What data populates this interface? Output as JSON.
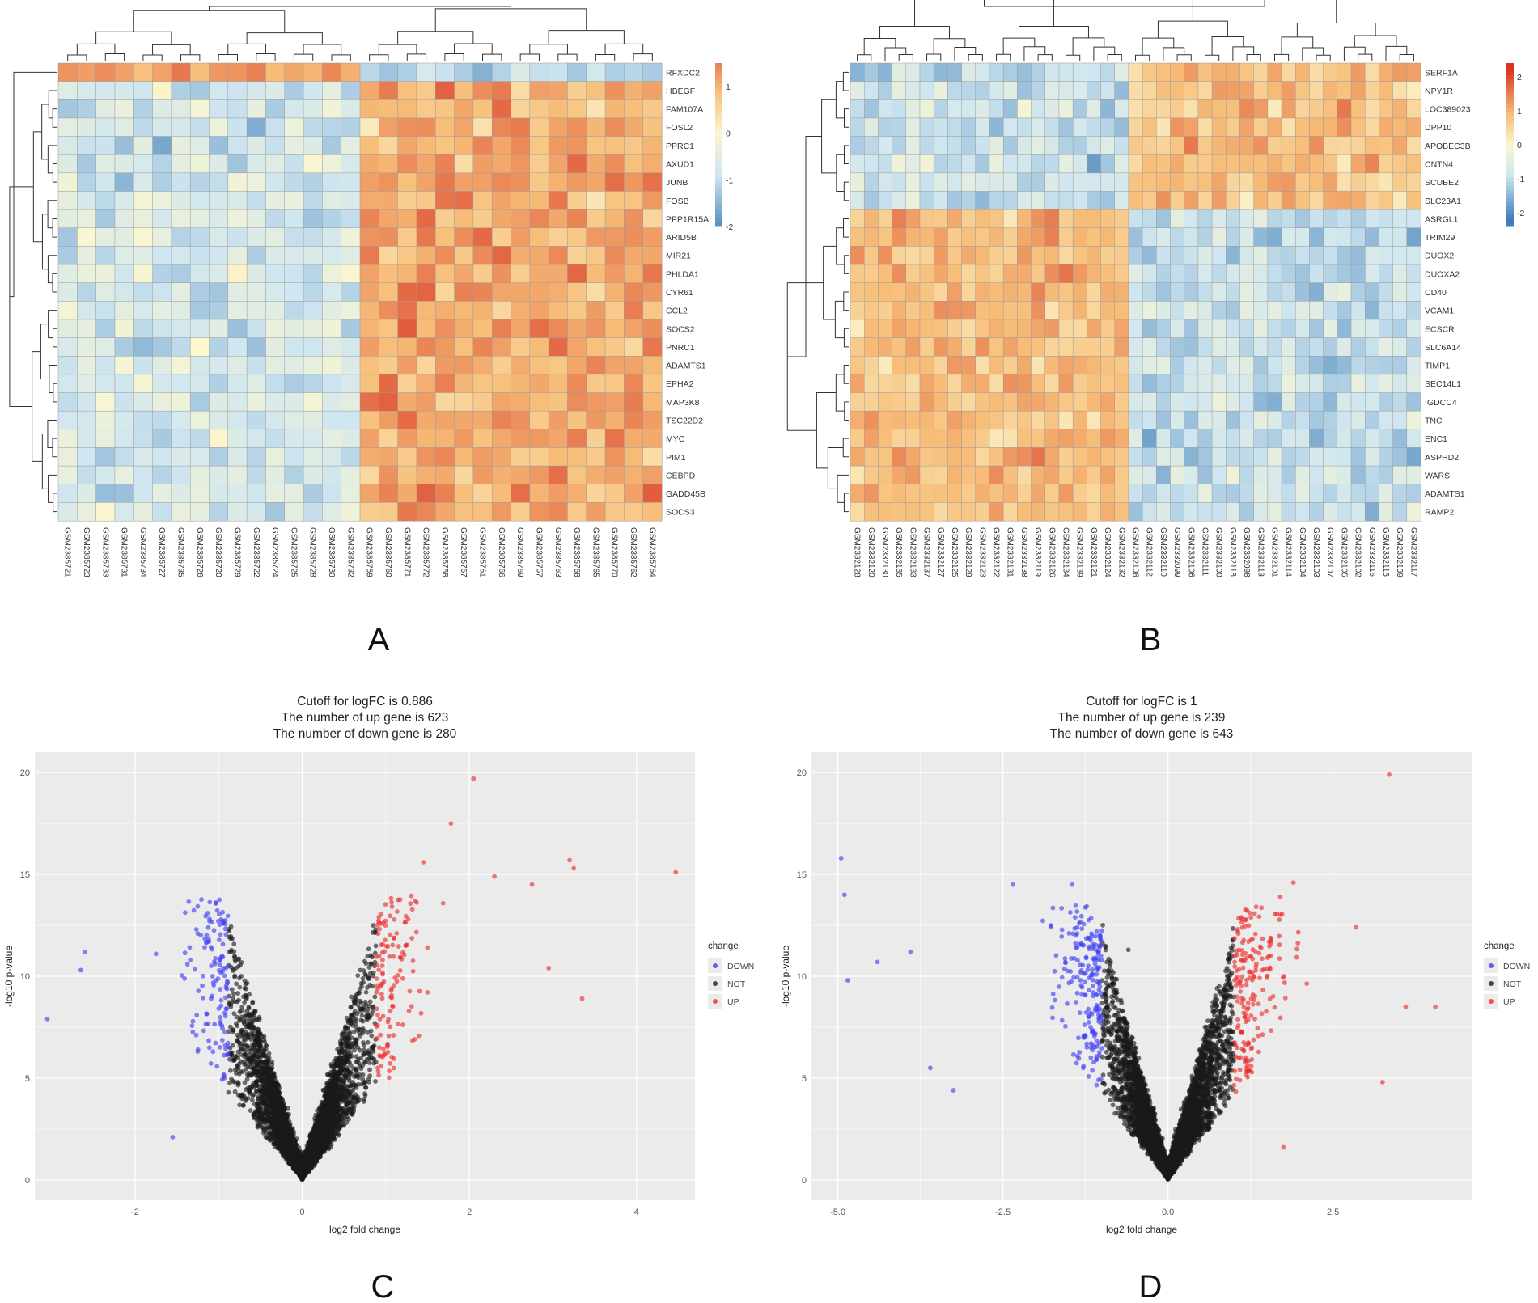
{
  "panel_letters": [
    "A",
    "B",
    "C",
    "D"
  ],
  "colors": {
    "heat_low": "#3f7fb8",
    "heat_lowmid": "#cfe6f0",
    "heat_mid": "#fbf7cf",
    "heat_highmid": "#f7be79",
    "heat_high": "#d83424",
    "down": "#3d3df5",
    "not": "#1a1a1a",
    "up": "#ee2a2a",
    "panel_bg": "#ebebeb",
    "grid": "#ffffff"
  },
  "chart_data": [
    {
      "panel": "A",
      "type": "heatmap",
      "rows": [
        "RFXDC2",
        "HBEGF",
        "FAM107A",
        "FOSL2",
        "PPRC1",
        "AXUD1",
        "JUNB",
        "FOSB",
        "PPP1R15A",
        "ARID5B",
        "MIR21",
        "PHLDA1",
        "CYR61",
        "CCL2",
        "SOCS2",
        "PNRC1",
        "ADAMTS1",
        "EPHA2",
        "MAP3K8",
        "TSC22D2",
        "MYC",
        "PIM1",
        "CEBPD",
        "GADD45B",
        "SOCS3"
      ],
      "columns": [
        "GSM2385721",
        "GSM2385723",
        "GSM2385733",
        "GSM2385731",
        "GSM2385734",
        "GSM2385727",
        "GSM2385735",
        "GSM2385726",
        "GSM2385720",
        "GSM2385729",
        "GSM2385722",
        "GSM2385724",
        "GSM2385725",
        "GSM2385728",
        "GSM2385730",
        "GSM2385732",
        "GSM2385759",
        "GSM2385760",
        "GSM2385771",
        "GSM2385772",
        "GSM2385758",
        "GSM2385767",
        "GSM2385761",
        "GSM2385766",
        "GSM2385769",
        "GSM2385757",
        "GSM2385763",
        "GSM2385768",
        "GSM2385765",
        "GSM2385770",
        "GSM2385762",
        "GSM2385764"
      ],
      "group_split": 16,
      "legend_ticks": [
        "1",
        "0",
        "-1",
        "-2"
      ],
      "legend_range": [
        -2,
        1.5
      ]
    },
    {
      "panel": "B",
      "type": "heatmap",
      "rows": [
        "SERF1A",
        "NPY1R",
        "LOC389023",
        "DPP10",
        "APOBEC3B",
        "CNTN4",
        "SCUBE2",
        "SLC23A1",
        "ASRGL1",
        "TRIM29",
        "DUOX2",
        "DUOXA2",
        "CD40",
        "VCAM1",
        "ECSCR",
        "SLC6A14",
        "TIMP1",
        "SEC14L1",
        "IGDCC4",
        "TNC",
        "ENC1",
        "ASPHD2",
        "WARS",
        "ADAMTS1",
        "RAMP2"
      ],
      "columns": [
        "GSM2332128",
        "GSM2332120",
        "GSM2332130",
        "GSM2332135",
        "GSM2332133",
        "GSM2332137",
        "GSM2332127",
        "GSM2332125",
        "GSM2332129",
        "GSM2332123",
        "GSM2332122",
        "GSM2332131",
        "GSM2332138",
        "GSM2332119",
        "GSM2332126",
        "GSM2332134",
        "GSM2332139",
        "GSM2332121",
        "GSM2332124",
        "GSM2332132",
        "GSM2332108",
        "GSM2332112",
        "GSM2332110",
        "GSM2332099",
        "GSM2332106",
        "GSM2332111",
        "GSM2332100",
        "GSM2332118",
        "GSM2332098",
        "GSM2332113",
        "GSM2332101",
        "GSM2332114",
        "GSM2332104",
        "GSM2332103",
        "GSM2332107",
        "GSM2332105",
        "GSM2332102",
        "GSM2332116",
        "GSM2332115",
        "GSM2332109",
        "GSM2332117"
      ],
      "row_split": 8,
      "group_split": 20,
      "legend_ticks": [
        "2",
        "1",
        "0",
        "-1",
        "-2"
      ],
      "legend_range": [
        -2.4,
        2.4
      ]
    },
    {
      "panel": "C",
      "type": "scatter",
      "title_lines": [
        "Cutoff for logFC is 0.886",
        "The number of up gene is 623",
        "The number of down gene is 280"
      ],
      "xlabel": "log2 fold change",
      "ylabel": "-log10 p-value",
      "xlim": [
        -3.2,
        4.7
      ],
      "ylim": [
        -1,
        21
      ],
      "xticks": [
        -2,
        0,
        2,
        4
      ],
      "xtick_labels": [
        "-2",
        "0",
        "2",
        "4"
      ],
      "yticks": [
        0,
        5,
        10,
        15,
        20
      ],
      "ytick_labels": [
        "0",
        "5",
        "10",
        "15",
        "20"
      ],
      "cutoff": 0.886,
      "legend_title": "change",
      "legend_labels": [
        "DOWN",
        "NOT",
        "UP"
      ],
      "highlight_points": [
        {
          "x": 2.05,
          "y": 19.7
        },
        {
          "x": 1.78,
          "y": 17.5
        },
        {
          "x": 3.2,
          "y": 15.7
        },
        {
          "x": 3.25,
          "y": 15.3
        },
        {
          "x": 4.47,
          "y": 15.1
        },
        {
          "x": 2.75,
          "y": 14.5
        },
        {
          "x": 3.35,
          "y": 8.9
        },
        {
          "x": -3.05,
          "y": 7.9
        },
        {
          "x": -2.6,
          "y": 11.2
        },
        {
          "x": -2.65,
          "y": 10.3
        },
        {
          "x": -1.13,
          "y": 13.1
        },
        {
          "x": -1.75,
          "y": 11.1
        },
        {
          "x": -1.25,
          "y": 12.1
        },
        {
          "x": -1.55,
          "y": 2.1
        },
        {
          "x": 0.85,
          "y": 12.5
        },
        {
          "x": 1.45,
          "y": 15.6
        },
        {
          "x": 2.3,
          "y": 14.9
        },
        {
          "x": 2.95,
          "y": 10.4
        }
      ]
    },
    {
      "panel": "D",
      "type": "scatter",
      "title_lines": [
        "Cutoff for logFC is 1",
        "The number of up gene is 239",
        "The number of down gene is 643"
      ],
      "xlabel": "log2 fold change",
      "ylabel": "-log10 p-value",
      "xlim": [
        -5.4,
        4.6
      ],
      "ylim": [
        -1,
        21
      ],
      "xticks": [
        -5,
        -2.5,
        0,
        2.5
      ],
      "xtick_labels": [
        "-5.0",
        "-2.5",
        "0.0",
        "2.5"
      ],
      "yticks": [
        0,
        5,
        10,
        15,
        20
      ],
      "ytick_labels": [
        "0",
        "5",
        "10",
        "15",
        "20"
      ],
      "cutoff": 1,
      "legend_title": "change",
      "legend_labels": [
        "DOWN",
        "NOT",
        "UP"
      ],
      "highlight_points": [
        {
          "x": 3.35,
          "y": 19.9
        },
        {
          "x": -4.95,
          "y": 15.8
        },
        {
          "x": -4.9,
          "y": 14.0
        },
        {
          "x": -4.85,
          "y": 9.8
        },
        {
          "x": -4.4,
          "y": 10.7
        },
        {
          "x": -3.9,
          "y": 11.2
        },
        {
          "x": -3.6,
          "y": 5.5
        },
        {
          "x": -3.25,
          "y": 4.4
        },
        {
          "x": -2.35,
          "y": 14.5
        },
        {
          "x": -1.45,
          "y": 14.5
        },
        {
          "x": -0.6,
          "y": 11.3
        },
        {
          "x": 1.9,
          "y": 14.6
        },
        {
          "x": 1.7,
          "y": 13.9
        },
        {
          "x": 2.85,
          "y": 12.4
        },
        {
          "x": 4.05,
          "y": 8.5
        },
        {
          "x": 3.25,
          "y": 4.8
        },
        {
          "x": 1.75,
          "y": 1.6
        },
        {
          "x": 3.6,
          "y": 8.5
        }
      ]
    }
  ]
}
